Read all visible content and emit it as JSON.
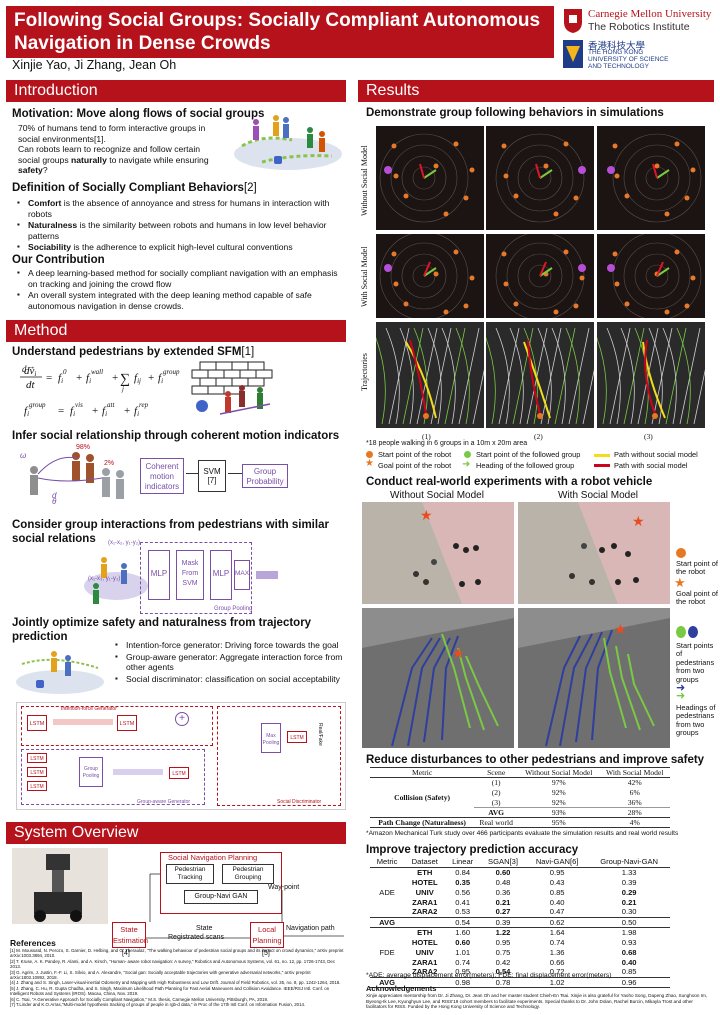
{
  "title": {
    "line1": "Following Social Groups: Socially Compliant Autonomous",
    "line2": "Navigation in Dense Crowds",
    "authors": "Xinjie Yao, Ji Zhang, Jean Oh"
  },
  "logos": {
    "cmu_name": "Carnegie Mellon University",
    "cmu_sub": "The Robotics Institute",
    "hkust_cn": "香港科技大學",
    "hkust_l1": "THE HONG KONG",
    "hkust_l2": "UNIVERSITY OF SCIENCE",
    "hkust_l3": "AND TECHNOLOGY"
  },
  "intro": {
    "header": "Introduction",
    "motivation_title": "Motivation: Move along flows of social groups",
    "motivation_l1": "70% of humans tend to form interactive groups in",
    "motivation_l2": "social environments[1].",
    "motivation_l3": "Can robots learn to recognize and follow certain",
    "motivation_l4a": "social groups ",
    "motivation_l4b": "naturally",
    "motivation_l4c": " to navigate while ensuring",
    "motivation_l5a": "safety",
    "motivation_l5b": "?",
    "def_title": "Definition of Socially Compliant Behaviors",
    "def_ref": "[2]",
    "defs": [
      {
        "term": "Comfort",
        "text": " is the absence of annoyance and stress for humans in interaction with robots"
      },
      {
        "term": "Naturalness",
        "text": " is the similarity between robots and humans in low level behavior patterns"
      },
      {
        "term": "Sociability",
        "text": " is the adherence to explicit high-level cultural conventions"
      }
    ],
    "contrib_title": "Our Contribution",
    "contribs": [
      "A deep learning-based method for socially compliant navigation with an emphasis on tracking and joining the crowd flow",
      "An overall system integrated with the deep leaning method capable of safe autonomous navigation in dense crowds."
    ]
  },
  "method": {
    "header": "Method",
    "sfm_title": "Understand pedestrians by extended SFM",
    "sfm_ref": "[1]",
    "infer_title": "Infer social relationship through coherent motion indicators",
    "infer_pct": "98%",
    "infer_pct2": "2%",
    "coherent_box": "Coherent motion indicators",
    "svm_box": "SVM [7]",
    "group_prob_box": "Group Probability",
    "group_title_l1": "Consider group interactions from pedestrians with similar",
    "group_title_l2": "social relations",
    "mlp1": "MLP",
    "mask": "Mask From SVM",
    "mlp2": "MLP",
    "max": "MAX",
    "pooling_label": "Group Pooling",
    "coord1": "(x₁-x₂, y₁-y₂)",
    "coord2": "(x₁-x₃, y₁-y₃)",
    "joint_title_l1": "Jointly optimize safety and naturalness from trajectory",
    "joint_title_l2": "prediction",
    "joint_items": [
      "Intention-force generator: Driving force towards the goal",
      "Group-aware generator: Aggregate interaction force from other agents",
      "Social discriminator: classification on social acceptability"
    ],
    "gen_ig": "Intention-force Generator",
    "gen_ga": "Group-aware Generator",
    "gen_sd": "Social Discriminator",
    "lstm": "LSTM",
    "max_pool": "Max Pooling",
    "group_pool": "Group Pooling",
    "real_fake": "Real/Fake"
  },
  "system": {
    "header": "System Overview",
    "snp": "Social Navigation Planning",
    "ped_track": "Pedestrian Tracking",
    "ped_group": "Pedestrian Grouping",
    "gan": "Group-Navi GAN",
    "waypoint": "Way-point",
    "state": "State",
    "reg_scans": "Registrated scans",
    "state_est": "State Estimation",
    "state_ref": "[4]",
    "local_plan": "Local Planning",
    "local_ref": "[5]",
    "nav_path": "Navigation path"
  },
  "references": {
    "title": "References",
    "items": [
      "[1] M. Moussaïd, N. Perozo, S. Garnier, D. Helbing, and G. Theraulaz, \"The walking behaviour of pedestrian social groups and its impact on crowd dynamics,\" arXiv preprint arXiv:1003.3894, 2010.",
      "[2] T. Kruse, A. K. Pandey, R. Alami, and A. Kirsch, \"Human- aware robot navigation: A survey,\" Robotics and Autonomous Systems, vol. 61, no. 12, pp. 1726-1743, Dec 2013.",
      "[3] G. Agrim, J. Justin, F.-F. Li, S. Silvio, and A. Alexandre, \"Social gan: Socially acceptable trajectories with generative adversarial networks,\" arXiv preprint arXiv:1803.10892, 2018.",
      "[4] J. Zhang and S. Singh, Laser-visual-inertial Odometry and Mapping with High Robustness and Low Drift. Journal of Field Robotics, vol. 35, no. 8, pp. 1242-1264, 2018.",
      "[5] J. Zhang, C. Hu, R. Gupta Chadha, and S. Singh, Maximum Likelihood Path Planning for Fast Aerial Maneuvers and Collision Avoidance. IEEE/RSJ Intl. Conf. on Intelligent Robots and Systems (IROS). Macau, China, Nov. 2019.",
      "[6] C. Tsai, \"A Generative Approach for Socially Compliant Navigation,\" M.S. thesis, Carnegie Mellon University, Pittsburgh, PA, 2019.",
      "[7] T.Linder and K.O.Arras,\"Multi-model hypothesis tracking of groups of people in rgb-d data,\" in Proc of the 17th Intl Conf. on Information Fusion, 2014."
    ]
  },
  "results": {
    "header": "Results",
    "demo_title": "Demonstrate group following behaviors in simulations",
    "row_without": "Without Social Model",
    "row_with": "With Social Model",
    "row_traj": "Trajectories",
    "col1": "(1)",
    "col2": "(2)",
    "col3": "(3)",
    "sim_note": "*18 people walking in 6 groups in a 10m x 20m area",
    "legend": {
      "start_robot": "Start point of the robot",
      "goal_robot": "Goal point of the robot",
      "start_group": "Start point of the followed group",
      "head_group": "Heading of the followed group",
      "path_without": "Path without social model",
      "path_with": "Path with social model"
    },
    "real_title": "Conduct real-world experiments with a robot vehicle",
    "real_without": "Without Social Model",
    "real_with": "With Social Model",
    "real_legend": {
      "start_robot": "Start point of the robot",
      "goal_robot": "Goal point of the robot",
      "start_peds": "Start points of pedestrians from two groups",
      "head_peds": "Headings of pedestrians from two groups"
    },
    "reduce_title": "Reduce disturbances to other pedestrians and improve safety",
    "disturb_table": {
      "headers": [
        "Metric",
        "Scene",
        "Without Social Model",
        "With Social Model"
      ],
      "collision_label": "Collision (Safety)",
      "path_label": "Path Change (Naturalness)",
      "rows": [
        {
          "scene": "(1)",
          "without": "97%",
          "with": "42%"
        },
        {
          "scene": "(2)",
          "without": "92%",
          "with": "6%"
        },
        {
          "scene": "(3)",
          "without": "92%",
          "with": "36%"
        },
        {
          "scene": "AVG",
          "without": "93%",
          "with": "28%"
        }
      ],
      "path_row": {
        "scene": "Real world",
        "without": "95%",
        "with": "4%"
      }
    },
    "amt_note": "*Amazon Mechanical Turk study over 466 participants evaluate the simulation results and real world results",
    "acc_title": "Improve trajectory prediction accuracy",
    "acc_table": {
      "headers": [
        "Metric",
        "Dataset",
        "Linear",
        "SGAN[3]",
        "Navi-GAN[6]",
        "Group-Navi-GAN"
      ],
      "ade_label": "ADE",
      "fde_label": "FDE",
      "avg_label": "AVG",
      "ade_rows": [
        [
          "ETH",
          "0.84",
          "0.60",
          "0.95",
          "1.33"
        ],
        [
          "HOTEL",
          "0.35",
          "0.48",
          "0.43",
          "0.39"
        ],
        [
          "UNIV",
          "0.56",
          "0.36",
          "0.85",
          "0.29"
        ],
        [
          "ZARA1",
          "0.41",
          "0.21",
          "0.40",
          "0.21"
        ],
        [
          "ZARA2",
          "0.53",
          "0.27",
          "0.47",
          "0.30"
        ]
      ],
      "ade_avg": [
        "0.54",
        "0.39",
        "0.62",
        "0.50"
      ],
      "fde_rows": [
        [
          "ETH",
          "1.60",
          "1.22",
          "1.64",
          "1.98"
        ],
        [
          "HOTEL",
          "0.60",
          "0.95",
          "0.74",
          "0.93"
        ],
        [
          "UNIV",
          "1.01",
          "0.75",
          "1.36",
          "0.68"
        ],
        [
          "ZARA1",
          "0.74",
          "0.42",
          "0.66",
          "0.40"
        ],
        [
          "ZARA2",
          "0.95",
          "0.54",
          "0.72",
          "0.85"
        ]
      ],
      "fde_avg": [
        "0.98",
        "0.78",
        "1.02",
        "0.96"
      ]
    },
    "ade_note": "*ADE: average displacement error(meters); FDE: final displacement error(meters)",
    "ack_title": "Acknowledgements",
    "ack_text": "Xinjie appreciates mentorship from Dr. Ji Zhang, Dr. Jean Oh and her master student Chieh-En Tsai. Xinjie is also grateful for Yaoho Song, Dapeng Zhao, Sunghoon Im, Byeong-Ik Lee, Kyunghyun Lee, and RISS'19 cohort members to facilitate experiments. Special thanks to Dr. John Dolan, Rachel Burcin, Mikayla Trost and other facilitators for RISS. Funded by the Hong Kong University of Science and Technology."
  },
  "colors": {
    "accent": "#b5121b",
    "purple": "#7a4fa8",
    "orange": "#e87722",
    "green": "#7ac943",
    "blue": "#2e3f9e"
  }
}
